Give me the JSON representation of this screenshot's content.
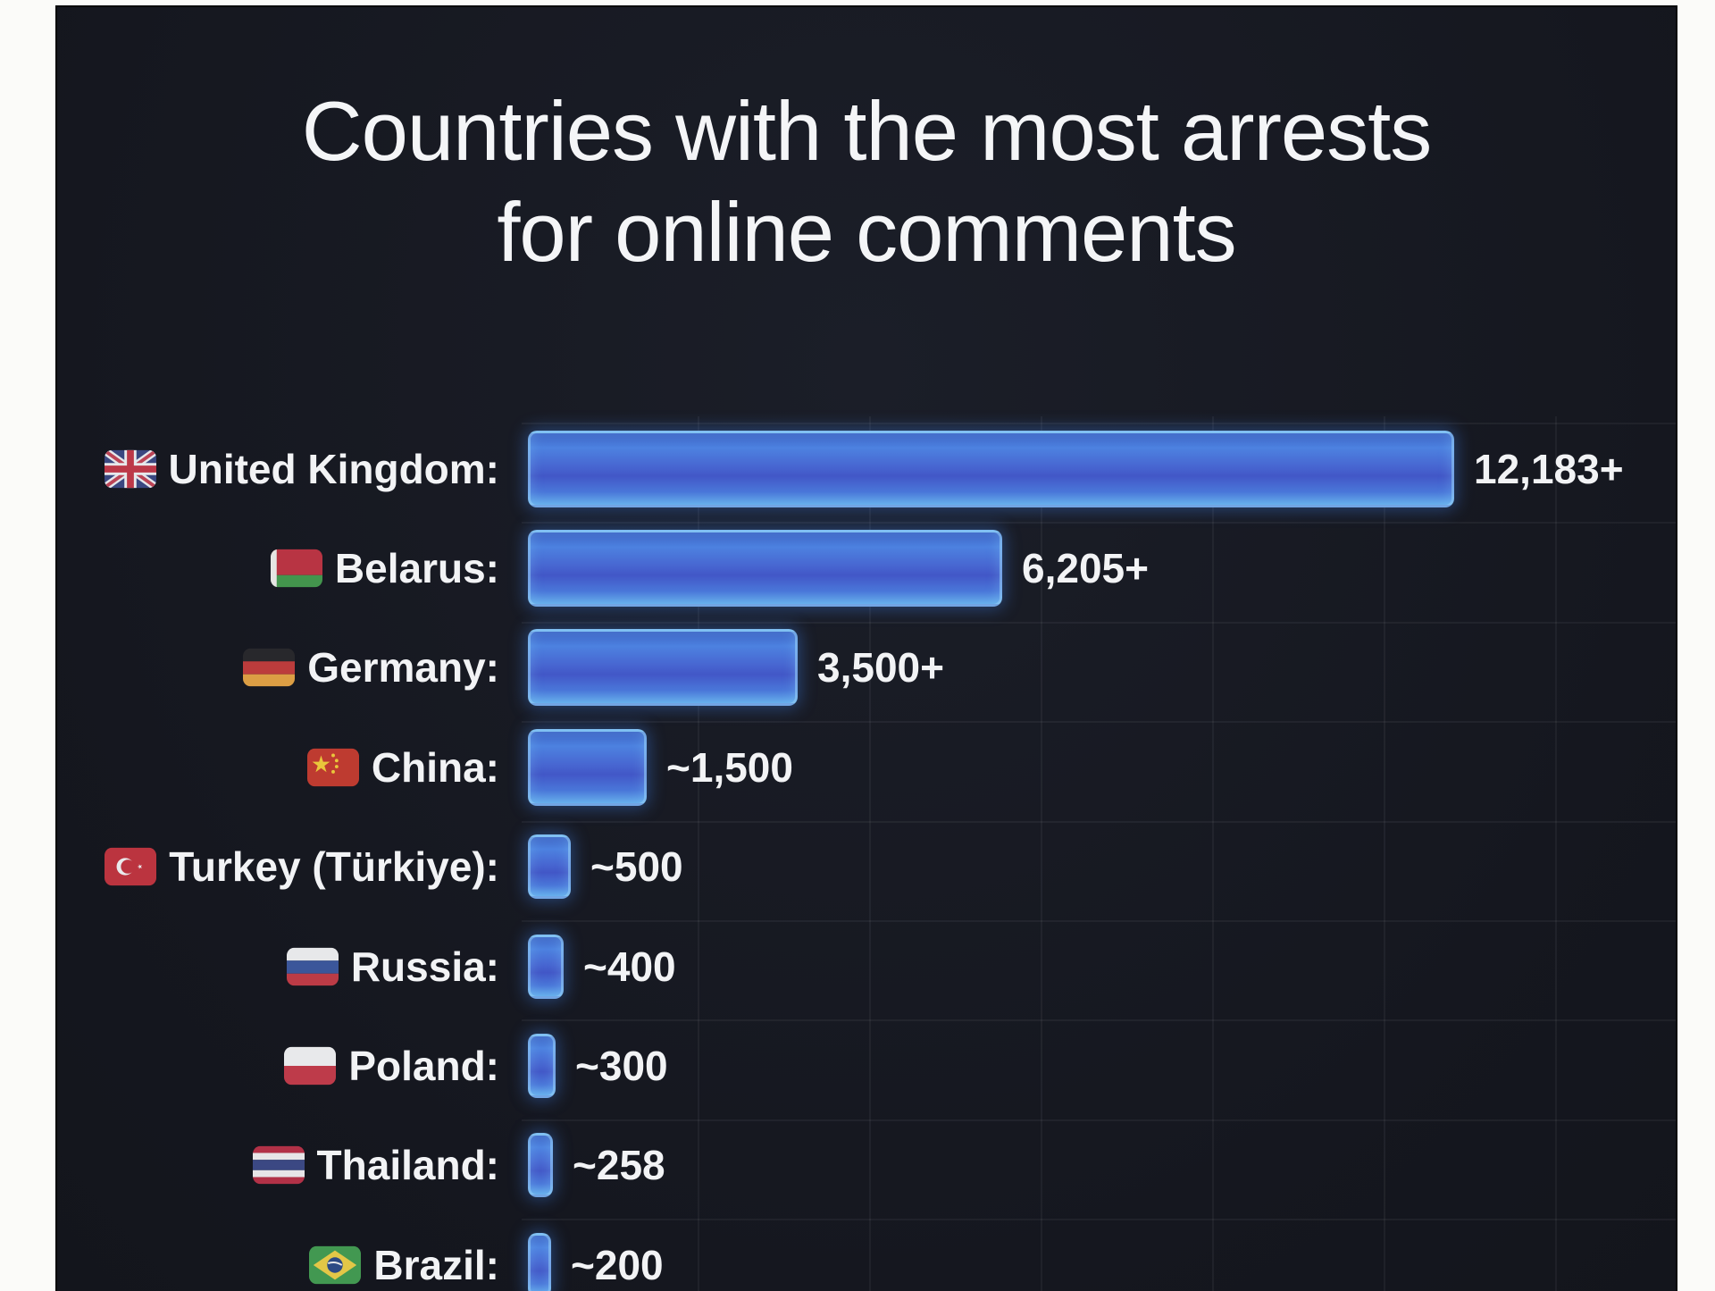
{
  "title": {
    "line1": "Countries with the most arrests",
    "line2": "for online comments"
  },
  "chart_data": {
    "type": "bar",
    "orientation": "horizontal",
    "title": "Countries with the most arrests for online comments",
    "xlabel": "",
    "ylabel": "",
    "xlim": [
      0,
      12183
    ],
    "grid": true,
    "categories": [
      "United Kingdom",
      "Belarus",
      "Germany",
      "China",
      "Turkey (Türkiye)",
      "Russia",
      "Poland",
      "Thailand",
      "Brazil"
    ],
    "category_labels": [
      "United Kingdom:",
      "Belarus:",
      "Germany:",
      "China:",
      "Turkey (Türkiye):",
      "Russia:",
      "Poland:",
      "Thailand:",
      "Brazil:"
    ],
    "values": [
      12183,
      6205,
      3500,
      1500,
      500,
      400,
      300,
      258,
      200
    ],
    "value_labels": [
      "12,183+",
      "6,205+",
      "3,500+",
      "~1,500",
      "~500",
      "~400",
      "~300",
      "~258",
      "~200"
    ],
    "flags": [
      "united-kingdom",
      "belarus",
      "germany",
      "china",
      "turkey",
      "russia",
      "poland",
      "thailand",
      "brazil"
    ],
    "colors": {
      "bar_fill": "#4668d2",
      "bar_rim": "#96d2f8",
      "panel_background": "#171a21",
      "page_background": "#fbfbf9",
      "text": "#f2f3f5",
      "gridline": "rgba(255,255,255,0.05)"
    }
  }
}
